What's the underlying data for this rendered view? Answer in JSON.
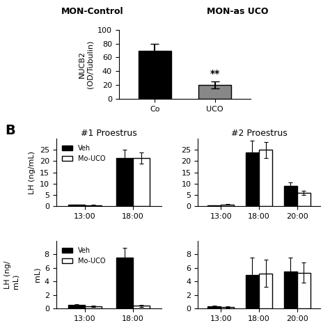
{
  "chart_data": [
    {
      "type": "bar",
      "categories": [
        "Co",
        "UCO"
      ],
      "values": [
        70,
        20
      ],
      "errors": [
        10,
        5
      ],
      "colors": [
        "#000000",
        "#888888"
      ],
      "ylabel": "NUCB2\n(OD/Tubulin)",
      "ylim": [
        0,
        100
      ],
      "yticks": [
        0,
        20,
        40,
        60,
        80,
        100
      ],
      "annotations": [
        {
          "text": "**",
          "category": "UCO"
        },
        {
          "text": "MON-Control"
        },
        {
          "text": "MON-as UCO"
        }
      ]
    },
    {
      "type": "bar",
      "title": "#1 Proestrus",
      "categories": [
        "13:00",
        "18:00"
      ],
      "series": [
        {
          "name": "Veh",
          "color": "#000000",
          "values": [
            0.6,
            21.5
          ],
          "errors": [
            0.1,
            3.5
          ]
        },
        {
          "name": "Mo-UCO",
          "color": "#ffffff",
          "values": [
            0.5,
            21.5
          ],
          "errors": [
            0.1,
            2.5
          ]
        }
      ],
      "ylabel": "LH (ng/mL)",
      "ylim": [
        0,
        30
      ],
      "yticks": [
        0,
        5,
        10,
        15,
        20,
        25
      ],
      "legend": "upper left",
      "annotations": [
        {
          "text": "B"
        }
      ]
    },
    {
      "type": "bar",
      "title": "#2 Proestrus",
      "categories": [
        "13:00",
        "18:00",
        "20:00"
      ],
      "series": [
        {
          "name": "Veh",
          "color": "#000000",
          "values": [
            0.3,
            24.0,
            9.0
          ],
          "errors": [
            0.1,
            5.0,
            1.5
          ]
        },
        {
          "name": "Mo-UCO",
          "color": "#ffffff",
          "values": [
            0.8,
            25.0,
            6.0
          ],
          "errors": [
            0.2,
            3.5,
            1.0
          ]
        }
      ],
      "ylim": [
        0,
        30
      ],
      "yticks": [
        0,
        5,
        10,
        15,
        20,
        25
      ]
    },
    {
      "type": "bar",
      "categories": [
        "13:00",
        "18:00"
      ],
      "series": [
        {
          "name": "Veh",
          "color": "#000000",
          "values": [
            0.5,
            7.5
          ],
          "errors": [
            0.1,
            1.5
          ]
        },
        {
          "name": "Mo-UCO",
          "color": "#ffffff",
          "values": [
            0.3,
            0.4
          ],
          "errors": [
            0.1,
            0.15
          ]
        }
      ],
      "ylabel": "mL)",
      "ylim": [
        0,
        10
      ],
      "yticks": [
        0,
        2,
        4,
        6,
        8
      ],
      "legend": "upper left",
      "annotations": [
        {
          "text": "LH (ng/\nmL)"
        }
      ]
    },
    {
      "type": "bar",
      "categories": [
        "13:00",
        "18:00",
        "20:00"
      ],
      "series": [
        {
          "name": "Veh",
          "color": "#000000",
          "values": [
            0.3,
            5.0,
            5.5
          ],
          "errors": [
            0.1,
            2.5,
            2.0
          ]
        },
        {
          "name": "Mo-UCO",
          "color": "#ffffff",
          "values": [
            0.2,
            5.2,
            5.3
          ],
          "errors": [
            0.1,
            2.0,
            1.5
          ]
        }
      ],
      "ylim": [
        0,
        10
      ],
      "yticks": [
        0,
        2,
        4,
        6,
        8
      ]
    }
  ]
}
